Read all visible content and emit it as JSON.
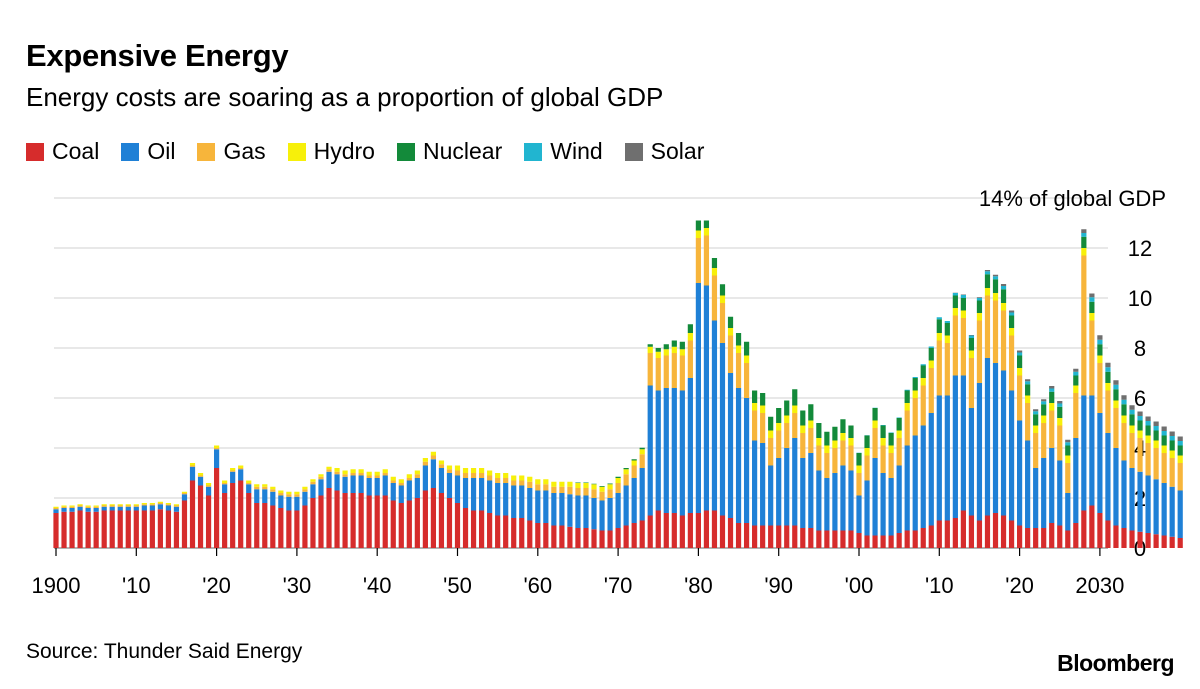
{
  "header": {
    "title": "Expensive Energy",
    "subtitle": "Energy costs are soaring as a proportion of global GDP"
  },
  "footer": {
    "source": "Source: Thunder Said Energy",
    "brand": "Bloomberg"
  },
  "chart_data": {
    "type": "bar",
    "stacked": true,
    "title": "Expensive Energy",
    "subtitle": "Energy costs are soaring as a proportion of global GDP",
    "ylabel": "14% of global GDP",
    "ylim": [
      0,
      14
    ],
    "grid": true,
    "legend_position": "top-left",
    "y_ticks": [
      "0",
      "2",
      "4",
      "6",
      "8",
      "10",
      "12"
    ],
    "y_top_label": "14% of global GDP",
    "x_tick_labels": [
      {
        "year": 1900,
        "label": "1900"
      },
      {
        "year": 1910,
        "label": "'10"
      },
      {
        "year": 1920,
        "label": "'20"
      },
      {
        "year": 1930,
        "label": "'30"
      },
      {
        "year": 1940,
        "label": "'40"
      },
      {
        "year": 1950,
        "label": "'50"
      },
      {
        "year": 1960,
        "label": "'60"
      },
      {
        "year": 1970,
        "label": "'70"
      },
      {
        "year": 1980,
        "label": "'80"
      },
      {
        "year": 1990,
        "label": "'90"
      },
      {
        "year": 2000,
        "label": "'00"
      },
      {
        "year": 2010,
        "label": "'10"
      },
      {
        "year": 2020,
        "label": "'20"
      },
      {
        "year": 2030,
        "label": "2030"
      }
    ],
    "series_names": [
      "Coal",
      "Oil",
      "Gas",
      "Hydro",
      "Nuclear",
      "Wind",
      "Solar"
    ],
    "colors": {
      "Coal": "#d62c2c",
      "Oil": "#1f80d6",
      "Gas": "#f7b53b",
      "Hydro": "#f7f00a",
      "Nuclear": "#138a3a",
      "Wind": "#21b5d0",
      "Solar": "#6f6f6f"
    },
    "grid_color": "#d9d9d9",
    "start_year": 1900,
    "values_note": "values per year in % of global GDP, order: Coal, Oil, Gas, Hydro, Nuclear, Wind, Solar",
    "values": [
      [
        1.4,
        0.15,
        0.05,
        0.05,
        0,
        0,
        0
      ],
      [
        1.45,
        0.15,
        0.05,
        0.05,
        0,
        0,
        0
      ],
      [
        1.45,
        0.15,
        0.05,
        0.05,
        0,
        0,
        0
      ],
      [
        1.5,
        0.15,
        0.05,
        0.05,
        0,
        0,
        0
      ],
      [
        1.45,
        0.15,
        0.05,
        0.05,
        0,
        0,
        0
      ],
      [
        1.45,
        0.15,
        0.05,
        0.05,
        0,
        0,
        0
      ],
      [
        1.5,
        0.15,
        0.05,
        0.05,
        0,
        0,
        0
      ],
      [
        1.5,
        0.15,
        0.05,
        0.05,
        0,
        0,
        0
      ],
      [
        1.5,
        0.15,
        0.05,
        0.05,
        0,
        0,
        0
      ],
      [
        1.5,
        0.15,
        0.05,
        0.05,
        0,
        0,
        0
      ],
      [
        1.5,
        0.15,
        0.05,
        0.05,
        0,
        0,
        0
      ],
      [
        1.5,
        0.2,
        0.05,
        0.05,
        0,
        0,
        0
      ],
      [
        1.5,
        0.2,
        0.05,
        0.05,
        0,
        0,
        0
      ],
      [
        1.55,
        0.2,
        0.05,
        0.05,
        0,
        0,
        0
      ],
      [
        1.5,
        0.2,
        0.05,
        0.05,
        0,
        0,
        0
      ],
      [
        1.45,
        0.2,
        0.05,
        0.05,
        0,
        0,
        0
      ],
      [
        1.9,
        0.25,
        0.05,
        0.05,
        0,
        0,
        0
      ],
      [
        2.7,
        0.55,
        0.05,
        0.1,
        0,
        0,
        0
      ],
      [
        2.5,
        0.35,
        0.05,
        0.1,
        0,
        0,
        0
      ],
      [
        2.1,
        0.35,
        0.05,
        0.1,
        0,
        0,
        0
      ],
      [
        3.2,
        0.75,
        0.05,
        0.1,
        0,
        0,
        0
      ],
      [
        2.2,
        0.35,
        0.05,
        0.1,
        0,
        0,
        0
      ],
      [
        2.6,
        0.45,
        0.05,
        0.1,
        0,
        0,
        0
      ],
      [
        2.7,
        0.45,
        0.05,
        0.1,
        0,
        0,
        0
      ],
      [
        2.2,
        0.35,
        0.05,
        0.1,
        0,
        0,
        0
      ],
      [
        1.8,
        0.55,
        0.1,
        0.1,
        0,
        0,
        0
      ],
      [
        1.8,
        0.55,
        0.1,
        0.1,
        0,
        0,
        0
      ],
      [
        1.7,
        0.55,
        0.1,
        0.1,
        0,
        0,
        0
      ],
      [
        1.6,
        0.5,
        0.1,
        0.1,
        0,
        0,
        0
      ],
      [
        1.5,
        0.55,
        0.1,
        0.1,
        0,
        0,
        0
      ],
      [
        1.5,
        0.55,
        0.1,
        0.1,
        0,
        0,
        0
      ],
      [
        1.7,
        0.55,
        0.1,
        0.1,
        0,
        0,
        0
      ],
      [
        2.0,
        0.55,
        0.1,
        0.1,
        0,
        0,
        0
      ],
      [
        2.1,
        0.65,
        0.1,
        0.1,
        0,
        0,
        0
      ],
      [
        2.4,
        0.65,
        0.1,
        0.1,
        0,
        0,
        0
      ],
      [
        2.3,
        0.65,
        0.1,
        0.15,
        0,
        0,
        0
      ],
      [
        2.2,
        0.65,
        0.1,
        0.15,
        0,
        0,
        0
      ],
      [
        2.2,
        0.7,
        0.1,
        0.15,
        0,
        0,
        0
      ],
      [
        2.2,
        0.7,
        0.1,
        0.15,
        0,
        0,
        0
      ],
      [
        2.1,
        0.7,
        0.1,
        0.15,
        0,
        0,
        0
      ],
      [
        2.1,
        0.7,
        0.1,
        0.15,
        0,
        0,
        0
      ],
      [
        2.1,
        0.8,
        0.1,
        0.15,
        0,
        0,
        0
      ],
      [
        1.9,
        0.7,
        0.1,
        0.15,
        0,
        0,
        0
      ],
      [
        1.8,
        0.7,
        0.1,
        0.15,
        0,
        0,
        0
      ],
      [
        1.9,
        0.8,
        0.1,
        0.15,
        0,
        0,
        0
      ],
      [
        2.0,
        0.8,
        0.15,
        0.15,
        0,
        0,
        0
      ],
      [
        2.3,
        1.0,
        0.15,
        0.15,
        0,
        0,
        0
      ],
      [
        2.4,
        1.15,
        0.15,
        0.15,
        0,
        0,
        0
      ],
      [
        2.2,
        1.0,
        0.15,
        0.15,
        0,
        0,
        0
      ],
      [
        2.0,
        1.0,
        0.15,
        0.15,
        0,
        0,
        0
      ],
      [
        1.8,
        1.1,
        0.2,
        0.2,
        0,
        0,
        0
      ],
      [
        1.6,
        1.2,
        0.2,
        0.2,
        0,
        0,
        0
      ],
      [
        1.5,
        1.3,
        0.2,
        0.2,
        0,
        0,
        0
      ],
      [
        1.5,
        1.3,
        0.2,
        0.2,
        0,
        0,
        0
      ],
      [
        1.4,
        1.3,
        0.2,
        0.2,
        0,
        0,
        0
      ],
      [
        1.3,
        1.3,
        0.2,
        0.2,
        0,
        0,
        0
      ],
      [
        1.3,
        1.3,
        0.2,
        0.2,
        0,
        0,
        0
      ],
      [
        1.2,
        1.3,
        0.2,
        0.2,
        0,
        0,
        0
      ],
      [
        1.2,
        1.3,
        0.2,
        0.2,
        0,
        0,
        0
      ],
      [
        1.1,
        1.3,
        0.25,
        0.2,
        0,
        0,
        0
      ],
      [
        1.0,
        1.3,
        0.25,
        0.2,
        0,
        0,
        0
      ],
      [
        1.0,
        1.3,
        0.25,
        0.2,
        0,
        0,
        0
      ],
      [
        0.9,
        1.3,
        0.25,
        0.2,
        0,
        0,
        0
      ],
      [
        0.9,
        1.3,
        0.25,
        0.2,
        0,
        0,
        0
      ],
      [
        0.85,
        1.3,
        0.3,
        0.2,
        0,
        0,
        0
      ],
      [
        0.8,
        1.3,
        0.3,
        0.2,
        0.02,
        0,
        0
      ],
      [
        0.8,
        1.3,
        0.3,
        0.2,
        0.02,
        0,
        0
      ],
      [
        0.75,
        1.25,
        0.35,
        0.2,
        0.02,
        0,
        0
      ],
      [
        0.7,
        1.2,
        0.35,
        0.2,
        0.03,
        0,
        0
      ],
      [
        0.7,
        1.3,
        0.35,
        0.2,
        0.03,
        0,
        0
      ],
      [
        0.8,
        1.4,
        0.4,
        0.2,
        0.05,
        0,
        0
      ],
      [
        0.9,
        1.6,
        0.45,
        0.2,
        0.05,
        0,
        0
      ],
      [
        1.0,
        1.8,
        0.5,
        0.2,
        0.05,
        0,
        0
      ],
      [
        1.1,
        2.1,
        0.55,
        0.2,
        0.06,
        0,
        0
      ],
      [
        1.3,
        5.2,
        1.3,
        0.25,
        0.1,
        0,
        0
      ],
      [
        1.5,
        4.8,
        1.3,
        0.25,
        0.15,
        0,
        0
      ],
      [
        1.4,
        5.0,
        1.3,
        0.25,
        0.2,
        0,
        0
      ],
      [
        1.4,
        5.0,
        1.4,
        0.25,
        0.25,
        0,
        0
      ],
      [
        1.3,
        5.0,
        1.4,
        0.25,
        0.3,
        0,
        0
      ],
      [
        1.4,
        5.4,
        1.5,
        0.3,
        0.35,
        0,
        0
      ],
      [
        1.4,
        9.2,
        1.8,
        0.3,
        0.4,
        0,
        0
      ],
      [
        1.5,
        9.0,
        2.0,
        0.3,
        0.3,
        0,
        0
      ],
      [
        1.5,
        7.6,
        1.8,
        0.3,
        0.4,
        0,
        0
      ],
      [
        1.3,
        6.9,
        1.6,
        0.3,
        0.45,
        0,
        0
      ],
      [
        1.2,
        5.8,
        1.5,
        0.3,
        0.45,
        0,
        0
      ],
      [
        1.0,
        5.4,
        1.4,
        0.3,
        0.5,
        0,
        0
      ],
      [
        1.0,
        5.0,
        1.4,
        0.3,
        0.55,
        0,
        0
      ],
      [
        0.9,
        3.4,
        1.2,
        0.3,
        0.5,
        0,
        0
      ],
      [
        0.9,
        3.3,
        1.2,
        0.3,
        0.5,
        0,
        0
      ],
      [
        0.9,
        2.4,
        1.1,
        0.3,
        0.55,
        0,
        0
      ],
      [
        0.9,
        2.7,
        1.1,
        0.3,
        0.6,
        0,
        0
      ],
      [
        0.9,
        3.1,
        1.0,
        0.3,
        0.6,
        0,
        0
      ],
      [
        0.9,
        3.5,
        1.0,
        0.3,
        0.65,
        0,
        0
      ],
      [
        0.8,
        2.8,
        1.0,
        0.3,
        0.6,
        0,
        0
      ],
      [
        0.8,
        3.0,
        1.0,
        0.3,
        0.65,
        0,
        0
      ],
      [
        0.7,
        2.4,
        1.0,
        0.3,
        0.6,
        0,
        0
      ],
      [
        0.7,
        2.1,
        1.0,
        0.3,
        0.55,
        0,
        0
      ],
      [
        0.7,
        2.3,
        1.0,
        0.3,
        0.55,
        0,
        0
      ],
      [
        0.7,
        2.6,
        1.0,
        0.3,
        0.55,
        0,
        0
      ],
      [
        0.7,
        2.4,
        1.0,
        0.3,
        0.5,
        0,
        0
      ],
      [
        0.6,
        1.5,
        0.9,
        0.3,
        0.5,
        0.01,
        0
      ],
      [
        0.5,
        2.2,
        1.0,
        0.3,
        0.5,
        0.01,
        0
      ],
      [
        0.5,
        3.1,
        1.2,
        0.3,
        0.5,
        0.01,
        0
      ],
      [
        0.5,
        2.5,
        1.1,
        0.3,
        0.5,
        0.02,
        0
      ],
      [
        0.5,
        2.3,
        1.0,
        0.3,
        0.5,
        0.02,
        0
      ],
      [
        0.6,
        2.7,
        1.1,
        0.3,
        0.5,
        0.02,
        0
      ],
      [
        0.7,
        3.4,
        1.4,
        0.3,
        0.5,
        0.03,
        0
      ],
      [
        0.7,
        3.8,
        1.5,
        0.3,
        0.5,
        0.04,
        0
      ],
      [
        0.8,
        4.1,
        1.6,
        0.3,
        0.5,
        0.05,
        0
      ],
      [
        0.9,
        4.5,
        1.8,
        0.3,
        0.5,
        0.06,
        0
      ],
      [
        1.1,
        5.0,
        2.2,
        0.3,
        0.55,
        0.08,
        0
      ],
      [
        1.1,
        5.0,
        2.1,
        0.3,
        0.5,
        0.08,
        0
      ],
      [
        1.2,
        5.7,
        2.4,
        0.3,
        0.5,
        0.1,
        0.01
      ],
      [
        1.5,
        5.4,
        2.3,
        0.3,
        0.5,
        0.12,
        0.02
      ],
      [
        1.3,
        4.3,
        2.0,
        0.3,
        0.5,
        0.1,
        0.02
      ],
      [
        1.1,
        5.5,
        2.5,
        0.3,
        0.5,
        0.1,
        0.03
      ],
      [
        1.3,
        6.3,
        2.5,
        0.3,
        0.55,
        0.12,
        0.05
      ],
      [
        1.4,
        6.0,
        2.5,
        0.3,
        0.55,
        0.12,
        0.06
      ],
      [
        1.3,
        5.8,
        2.4,
        0.3,
        0.55,
        0.13,
        0.08
      ],
      [
        1.1,
        5.2,
        2.2,
        0.3,
        0.5,
        0.12,
        0.08
      ],
      [
        0.9,
        4.2,
        1.8,
        0.3,
        0.5,
        0.12,
        0.08
      ],
      [
        0.8,
        3.5,
        1.5,
        0.3,
        0.45,
        0.12,
        0.08
      ],
      [
        0.8,
        2.4,
        1.4,
        0.3,
        0.45,
        0.12,
        0.08
      ],
      [
        0.8,
        2.8,
        1.4,
        0.3,
        0.45,
        0.12,
        0.08
      ],
      [
        1.0,
        3.0,
        1.5,
        0.3,
        0.45,
        0.13,
        0.1
      ],
      [
        0.9,
        2.6,
        1.4,
        0.3,
        0.45,
        0.13,
        0.1
      ],
      [
        0.7,
        1.5,
        1.2,
        0.3,
        0.4,
        0.13,
        0.1
      ],
      [
        1.0,
        3.4,
        1.8,
        0.3,
        0.4,
        0.15,
        0.12
      ],
      [
        1.5,
        4.6,
        5.6,
        0.3,
        0.45,
        0.15,
        0.15
      ],
      [
        1.7,
        4.4,
        3.0,
        0.3,
        0.45,
        0.18,
        0.15
      ],
      [
        1.4,
        4.0,
        2.0,
        0.3,
        0.45,
        0.18,
        0.18
      ],
      [
        1.1,
        3.5,
        1.7,
        0.3,
        0.45,
        0.18,
        0.18
      ],
      [
        0.9,
        3.1,
        1.6,
        0.3,
        0.45,
        0.18,
        0.18
      ],
      [
        0.8,
        2.7,
        1.5,
        0.3,
        0.45,
        0.18,
        0.18
      ],
      [
        0.7,
        2.5,
        1.4,
        0.3,
        0.45,
        0.18,
        0.18
      ],
      [
        0.65,
        2.4,
        1.35,
        0.3,
        0.4,
        0.18,
        0.18
      ],
      [
        0.6,
        2.3,
        1.3,
        0.3,
        0.4,
        0.18,
        0.18
      ],
      [
        0.55,
        2.2,
        1.25,
        0.3,
        0.4,
        0.18,
        0.18
      ],
      [
        0.5,
        2.1,
        1.2,
        0.3,
        0.4,
        0.18,
        0.18
      ],
      [
        0.45,
        2.0,
        1.15,
        0.3,
        0.4,
        0.18,
        0.18
      ],
      [
        0.4,
        1.9,
        1.1,
        0.3,
        0.4,
        0.18,
        0.18
      ]
    ]
  }
}
